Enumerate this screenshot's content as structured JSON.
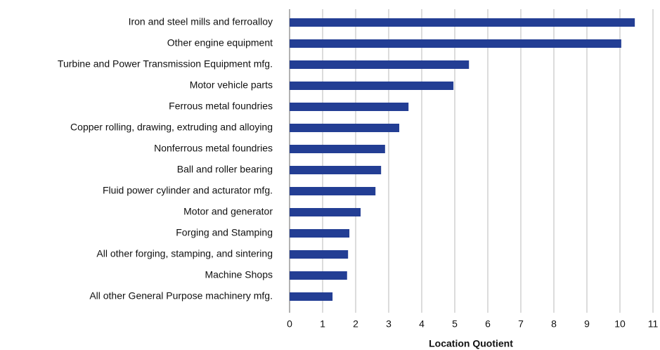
{
  "chart_data": {
    "type": "hbar",
    "x_label": "Location Quotient",
    "categories": [
      "Iron and steel mills and ferroalloy",
      "Other engine equipment",
      "Turbine and Power Transmission Equipment mfg.",
      "Motor vehicle parts",
      "Ferrous metal foundries",
      "Copper rolling, drawing, extruding and alloying",
      "Nonferrous metal foundries",
      "Ball and roller bearing",
      "Fluid power cylinder and acturator mfg.",
      "Motor and generator",
      "Forging and Stamping",
      "All other forging, stamping, and sintering",
      "Machine Shops",
      "All other General Purpose machinery mfg."
    ],
    "values": [
      10.45,
      10.04,
      5.43,
      4.96,
      3.6,
      3.32,
      2.89,
      2.77,
      2.6,
      2.15,
      1.81,
      1.77,
      1.74,
      1.3
    ],
    "color": "#233e94",
    "xlim": [
      0,
      11
    ],
    "xticks": [
      0,
      1,
      2,
      3,
      4,
      5,
      6,
      7,
      8,
      9,
      10,
      11
    ],
    "grid": true
  }
}
